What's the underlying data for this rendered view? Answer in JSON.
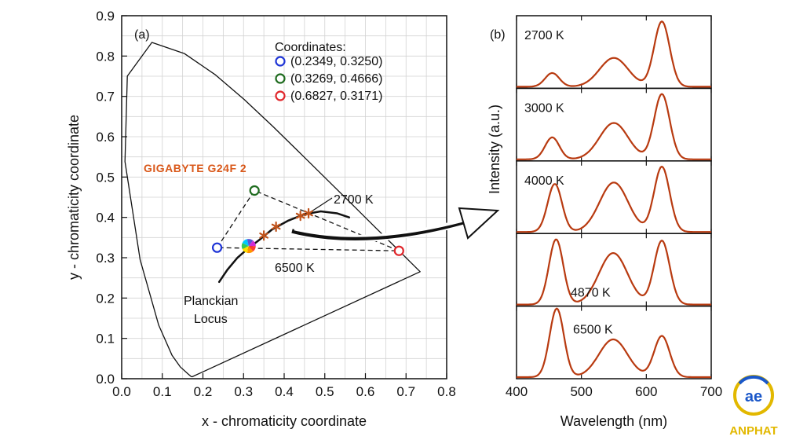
{
  "chart_data": [
    {
      "type": "scatter",
      "panel_label": "(a)",
      "xlabel": "x - chromaticity coordinate",
      "ylabel": "y - chromaticity  coordinate",
      "xlim": [
        0.0,
        0.8
      ],
      "ylim": [
        0.0,
        0.9
      ],
      "xticks": [
        "0.0",
        "0.1",
        "0.2",
        "0.3",
        "0.4",
        "0.5",
        "0.6",
        "0.7",
        "0.8"
      ],
      "yticks": [
        "0.0",
        "0.1",
        "0.2",
        "0.3",
        "0.4",
        "0.5",
        "0.6",
        "0.7",
        "0.8",
        "0.9"
      ],
      "grid": true,
      "legend_title": "Coordinates:",
      "points": [
        {
          "label": "(0.2349, 0.3250)",
          "x": 0.2349,
          "y": 0.325,
          "color": "#1f35d6"
        },
        {
          "label": "(0.3269, 0.4666)",
          "x": 0.3269,
          "y": 0.4666,
          "color": "#1e6b1e"
        },
        {
          "label": "(0.6827, 0.3171)",
          "x": 0.6827,
          "y": 0.3171,
          "color": "#e0262b"
        }
      ],
      "product_label": "GIGABYTE G24F 2",
      "locus_label_1": "Planckian",
      "locus_label_2": "Locus",
      "label_2700": "2700 K",
      "label_6500": "6500 K",
      "locus_points": [
        [
          0.35,
          0.355
        ],
        [
          0.38,
          0.377
        ],
        [
          0.44,
          0.404
        ],
        [
          0.46,
          0.41
        ]
      ],
      "white_point": {
        "x": 0.3127,
        "y": 0.329
      },
      "spectral_locus": [
        [
          0.1741,
          0.005
        ],
        [
          0.1738,
          0.0049
        ],
        [
          0.1714,
          0.0051
        ],
        [
          0.1644,
          0.0109
        ],
        [
          0.144,
          0.0297
        ],
        [
          0.1241,
          0.0578
        ],
        [
          0.0913,
          0.1327
        ],
        [
          0.0454,
          0.295
        ],
        [
          0.0082,
          0.5384
        ],
        [
          0.0139,
          0.7502
        ],
        [
          0.0743,
          0.8338
        ],
        [
          0.1547,
          0.8059
        ],
        [
          0.2296,
          0.7543
        ],
        [
          0.3016,
          0.6923
        ],
        [
          0.3731,
          0.6245
        ],
        [
          0.4441,
          0.5547
        ],
        [
          0.5125,
          0.4866
        ],
        [
          0.5752,
          0.4242
        ],
        [
          0.627,
          0.3725
        ],
        [
          0.6658,
          0.334
        ],
        [
          0.6915,
          0.3083
        ],
        [
          0.7079,
          0.292
        ],
        [
          0.7347,
          0.2653
        ]
      ],
      "planckian_locus": [
        [
          0.24,
          0.24
        ],
        [
          0.26,
          0.27
        ],
        [
          0.285,
          0.3
        ],
        [
          0.31,
          0.322
        ],
        [
          0.34,
          0.345
        ],
        [
          0.37,
          0.37
        ],
        [
          0.41,
          0.392
        ],
        [
          0.45,
          0.408
        ],
        [
          0.49,
          0.415
        ],
        [
          0.53,
          0.41
        ],
        [
          0.56,
          0.4
        ]
      ]
    },
    {
      "type": "line",
      "panel_label": "(b)",
      "xlabel": "Wavelength (nm)",
      "ylabel": "Intensity (a.u.)",
      "xlim": [
        400,
        700
      ],
      "xticks": [
        "400",
        "500",
        "600",
        "700"
      ],
      "color": "#b83a10",
      "series": [
        {
          "name": "2700 K",
          "peaks": [
            [
              455,
              0.2,
              11
            ],
            [
              550,
              0.42,
              22
            ],
            [
              624,
              0.95,
              12
            ]
          ]
        },
        {
          "name": "3000 K",
          "peaks": [
            [
              455,
              0.32,
              11
            ],
            [
              550,
              0.53,
              22
            ],
            [
              624,
              0.95,
              12
            ]
          ]
        },
        {
          "name": "4000 K",
          "peaks": [
            [
              459,
              0.7,
              11
            ],
            [
              550,
              0.72,
              22
            ],
            [
              624,
              0.95,
              12
            ]
          ]
        },
        {
          "name": "4870 K",
          "peaks": [
            [
              461,
              0.95,
              11
            ],
            [
              549,
              0.75,
              22
            ],
            [
              624,
              0.93,
              12
            ]
          ]
        },
        {
          "name": "6500 K",
          "peaks": [
            [
              462,
              1.0,
              11
            ],
            [
              549,
              0.55,
              22
            ],
            [
              624,
              0.6,
              12
            ]
          ]
        }
      ]
    }
  ],
  "logo": {
    "text": "ANPHAT",
    "glyph": "ae",
    "color": "#e2b800",
    "accent": "#1a57c9"
  }
}
